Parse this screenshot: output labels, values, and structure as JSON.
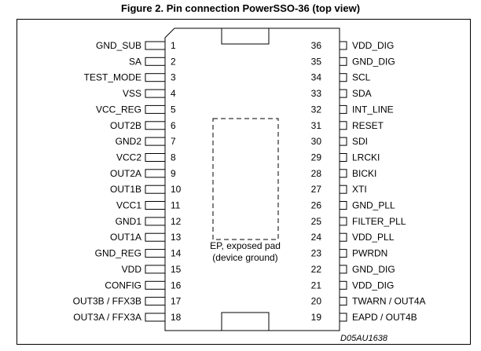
{
  "figure": {
    "title": "Figure 2. Pin connection PowerSSO-36 (top view)",
    "reference": "D05AU1638"
  },
  "package": {
    "exposed_pad_label_line1": "EP, exposed pad",
    "exposed_pad_label_line2": "(device ground)"
  },
  "pins_left": [
    {
      "num": "1",
      "name": "GND_SUB"
    },
    {
      "num": "2",
      "name": "SA"
    },
    {
      "num": "3",
      "name": "TEST_MODE"
    },
    {
      "num": "4",
      "name": "VSS"
    },
    {
      "num": "5",
      "name": "VCC_REG"
    },
    {
      "num": "6",
      "name": "OUT2B"
    },
    {
      "num": "7",
      "name": "GND2"
    },
    {
      "num": "8",
      "name": "VCC2"
    },
    {
      "num": "9",
      "name": "OUT2A"
    },
    {
      "num": "10",
      "name": "OUT1B"
    },
    {
      "num": "11",
      "name": "VCC1"
    },
    {
      "num": "12",
      "name": "GND1"
    },
    {
      "num": "13",
      "name": "OUT1A"
    },
    {
      "num": "14",
      "name": "GND_REG"
    },
    {
      "num": "15",
      "name": "VDD"
    },
    {
      "num": "16",
      "name": "CONFIG"
    },
    {
      "num": "17",
      "name": "OUT3B / FFX3B"
    },
    {
      "num": "18",
      "name": "OUT3A / FFX3A"
    }
  ],
  "pins_right": [
    {
      "num": "36",
      "name": "VDD_DIG"
    },
    {
      "num": "35",
      "name": "GND_DIG"
    },
    {
      "num": "34",
      "name": "SCL"
    },
    {
      "num": "33",
      "name": "SDA"
    },
    {
      "num": "32",
      "name": "INT_LINE"
    },
    {
      "num": "31",
      "name": "RESET"
    },
    {
      "num": "30",
      "name": "SDI"
    },
    {
      "num": "29",
      "name": "LRCKI"
    },
    {
      "num": "28",
      "name": "BICKI"
    },
    {
      "num": "27",
      "name": "XTI"
    },
    {
      "num": "26",
      "name": "GND_PLL"
    },
    {
      "num": "25",
      "name": "FILTER_PLL"
    },
    {
      "num": "24",
      "name": "VDD_PLL"
    },
    {
      "num": "23",
      "name": "PWRDN"
    },
    {
      "num": "22",
      "name": "GND_DIG"
    },
    {
      "num": "21",
      "name": "VDD_DIG"
    },
    {
      "num": "20",
      "name": "TWARN / OUT4A"
    },
    {
      "num": "19",
      "name": "EAPD / OUT4B"
    }
  ]
}
